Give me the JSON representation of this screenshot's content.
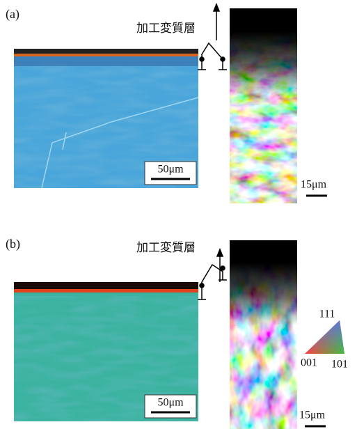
{
  "panels": [
    {
      "label": "(a)",
      "annotation": "加工変質層",
      "optical_scale": "50μm",
      "ebsd_scale": "15μm"
    },
    {
      "label": "(b)",
      "annotation": "加工変質層",
      "optical_scale": "50μm",
      "ebsd_scale": "15μm"
    }
  ],
  "legend": {
    "top": "111",
    "bottom_left": "001",
    "bottom_right": "101"
  }
}
